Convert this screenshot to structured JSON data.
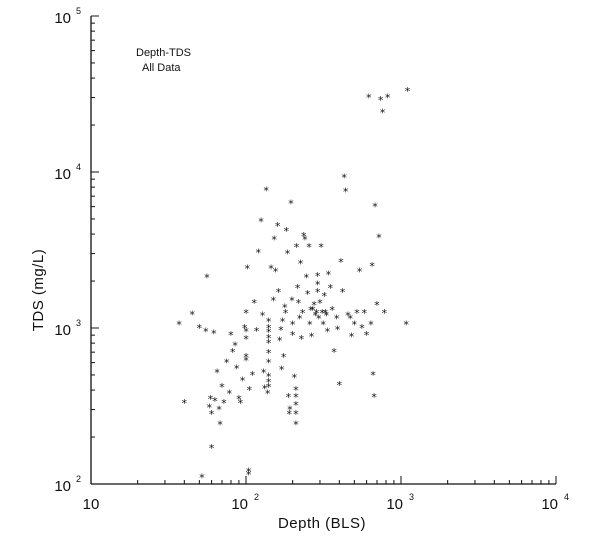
{
  "chart_data": {
    "type": "scatter",
    "title": "Depth-TDS",
    "subtitle": "All Data",
    "xlabel": "Depth (BLS)",
    "ylabel": "TDS (mg/L)",
    "xscale": "log",
    "yscale": "log",
    "xlim": [
      10,
      10000
    ],
    "ylim": [
      100,
      100000
    ],
    "grid": false,
    "marker": "*",
    "x_tick_labels": [
      {
        "value": 10,
        "base": "10",
        "exp": ""
      },
      {
        "value": 100,
        "base": "10",
        "exp": "2"
      },
      {
        "value": 1000,
        "base": "10",
        "exp": "3"
      },
      {
        "value": 10000,
        "base": "10",
        "exp": "4"
      }
    ],
    "y_tick_labels": [
      {
        "value": 100,
        "base": "10",
        "exp": "2"
      },
      {
        "value": 1000,
        "base": "10",
        "exp": "3"
      },
      {
        "value": 10000,
        "base": "10",
        "exp": "4"
      },
      {
        "value": 100000,
        "base": "10",
        "exp": "5"
      }
    ],
    "points": [
      [
        37,
        1050
      ],
      [
        40,
        330
      ],
      [
        45,
        1220
      ],
      [
        50,
        1000
      ],
      [
        52,
        110
      ],
      [
        55,
        950
      ],
      [
        56,
        2100
      ],
      [
        58,
        310
      ],
      [
        59,
        350
      ],
      [
        60,
        280
      ],
      [
        60,
        170
      ],
      [
        62,
        920
      ],
      [
        63,
        340
      ],
      [
        65,
        520
      ],
      [
        67,
        300
      ],
      [
        68,
        240
      ],
      [
        70,
        420
      ],
      [
        72,
        330
      ],
      [
        75,
        600
      ],
      [
        78,
        380
      ],
      [
        80,
        900
      ],
      [
        82,
        700
      ],
      [
        85,
        770
      ],
      [
        87,
        550
      ],
      [
        90,
        350
      ],
      [
        92,
        330
      ],
      [
        95,
        460
      ],
      [
        98,
        1000
      ],
      [
        100,
        950
      ],
      [
        100,
        850
      ],
      [
        100,
        650
      ],
      [
        100,
        620
      ],
      [
        100,
        1250
      ],
      [
        102,
        2400
      ],
      [
        104,
        120
      ],
      [
        104,
        115
      ],
      [
        105,
        400
      ],
      [
        110,
        500
      ],
      [
        113,
        1450
      ],
      [
        117,
        960
      ],
      [
        120,
        3050
      ],
      [
        125,
        4800
      ],
      [
        128,
        1200
      ],
      [
        130,
        520
      ],
      [
        132,
        410
      ],
      [
        135,
        7600
      ],
      [
        138,
        380
      ],
      [
        140,
        1100
      ],
      [
        140,
        1000
      ],
      [
        140,
        940
      ],
      [
        140,
        860
      ],
      [
        140,
        800
      ],
      [
        140,
        690
      ],
      [
        140,
        600
      ],
      [
        140,
        490
      ],
      [
        140,
        450
      ],
      [
        140,
        420
      ],
      [
        145,
        2400
      ],
      [
        150,
        1500
      ],
      [
        152,
        3700
      ],
      [
        155,
        2300
      ],
      [
        160,
        4500
      ],
      [
        162,
        1700
      ],
      [
        165,
        830
      ],
      [
        168,
        970
      ],
      [
        170,
        540
      ],
      [
        172,
        1100
      ],
      [
        175,
        650
      ],
      [
        178,
        1350
      ],
      [
        180,
        1250
      ],
      [
        182,
        4200
      ],
      [
        185,
        3000
      ],
      [
        188,
        360
      ],
      [
        190,
        280
      ],
      [
        192,
        300
      ],
      [
        195,
        6300
      ],
      [
        198,
        1500
      ],
      [
        200,
        1050
      ],
      [
        200,
        900
      ],
      [
        205,
        480
      ],
      [
        210,
        400
      ],
      [
        210,
        360
      ],
      [
        210,
        320
      ],
      [
        210,
        280
      ],
      [
        210,
        240
      ],
      [
        212,
        3300
      ],
      [
        215,
        1800
      ],
      [
        218,
        1450
      ],
      [
        222,
        1150
      ],
      [
        225,
        2600
      ],
      [
        228,
        850
      ],
      [
        232,
        1250
      ],
      [
        236,
        3900
      ],
      [
        240,
        3700
      ],
      [
        245,
        2100
      ],
      [
        250,
        1650
      ],
      [
        255,
        3300
      ],
      [
        258,
        1050
      ],
      [
        262,
        1300
      ],
      [
        265,
        880
      ],
      [
        270,
        1300
      ],
      [
        275,
        1400
      ],
      [
        280,
        1200
      ],
      [
        285,
        1250
      ],
      [
        290,
        2150
      ],
      [
        290,
        1900
      ],
      [
        290,
        1700
      ],
      [
        295,
        1150
      ],
      [
        300,
        1450
      ],
      [
        305,
        3300
      ],
      [
        310,
        1250
      ],
      [
        315,
        1050
      ],
      [
        320,
        1600
      ],
      [
        325,
        1250
      ],
      [
        330,
        1200
      ],
      [
        335,
        950
      ],
      [
        340,
        2200
      ],
      [
        350,
        1800
      ],
      [
        360,
        1300
      ],
      [
        370,
        700
      ],
      [
        385,
        1150
      ],
      [
        390,
        980
      ],
      [
        400,
        430
      ],
      [
        410,
        2650
      ],
      [
        420,
        1700
      ],
      [
        430,
        9200
      ],
      [
        440,
        7500
      ],
      [
        455,
        1200
      ],
      [
        470,
        1150
      ],
      [
        480,
        880
      ],
      [
        500,
        1050
      ],
      [
        520,
        1250
      ],
      [
        540,
        2300
      ],
      [
        560,
        1000
      ],
      [
        580,
        1250
      ],
      [
        600,
        900
      ],
      [
        620,
        30000
      ],
      [
        640,
        1050
      ],
      [
        650,
        2500
      ],
      [
        660,
        500
      ],
      [
        670,
        360
      ],
      [
        680,
        6000
      ],
      [
        700,
        1400
      ],
      [
        720,
        3800
      ],
      [
        740,
        29000
      ],
      [
        760,
        24000
      ],
      [
        780,
        1250
      ],
      [
        820,
        30000
      ],
      [
        1080,
        1050
      ],
      [
        1100,
        33000
      ]
    ]
  }
}
